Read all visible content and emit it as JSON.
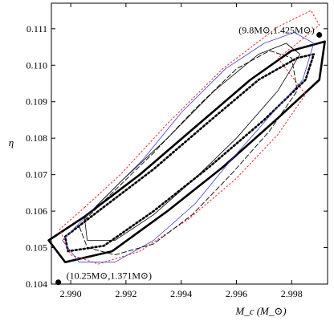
{
  "chart_data": {
    "type": "line",
    "xlabel": "M_c (M_⊙)",
    "ylabel": "η",
    "xlim": [
      2.9893,
      2.9993
    ],
    "ylim": [
      0.104,
      0.1117
    ],
    "x_ticks": [
      "2.990",
      "2.992",
      "2.994",
      "2.996",
      "2.998"
    ],
    "y_ticks": [
      "0.104",
      "0.105",
      "0.106",
      "0.107",
      "0.108",
      "0.109",
      "0.110",
      "0.111"
    ],
    "x_tick_values": [
      2.99,
      2.992,
      2.994,
      2.996,
      2.998
    ],
    "y_tick_values": [
      0.104,
      0.105,
      0.106,
      0.107,
      0.108,
      0.109,
      0.11,
      0.111
    ],
    "points": [
      {
        "x": 2.999,
        "y": 0.11083,
        "label": "(9.8M⊙,1.425M⊙)",
        "marker": "filled"
      },
      {
        "x": 2.98955,
        "y": 0.10405,
        "label": "(10.25M⊙,1.371M⊙)",
        "marker": "filled"
      }
    ],
    "series": [
      {
        "style": "solid-thick",
        "color": "#000000",
        "x": [
          2.9892,
          2.9905,
          2.9925,
          2.9945,
          2.9965,
          2.998,
          2.9992,
          2.999,
          2.9975,
          2.9955,
          2.9935,
          2.9915,
          2.9898,
          2.9892
        ],
        "y": [
          0.1052,
          0.10585,
          0.107,
          0.1083,
          0.1096,
          0.1104,
          0.11065,
          0.1096,
          0.10855,
          0.1072,
          0.106,
          0.1049,
          0.1046,
          0.1052
        ]
      },
      {
        "style": "dotted-thick",
        "color": "#000000",
        "x": [
          2.9898,
          2.991,
          2.993,
          2.995,
          2.9968,
          2.9982,
          2.9988,
          2.9985,
          2.997,
          2.995,
          2.993,
          2.9912,
          2.9899,
          2.9898
        ],
        "y": [
          0.1053,
          0.106,
          0.10715,
          0.10845,
          0.1096,
          0.1102,
          0.1103,
          0.1096,
          0.1085,
          0.1072,
          0.106,
          0.10505,
          0.1049,
          0.1053
        ]
      },
      {
        "style": "dotted",
        "color": "#e8322e",
        "x": [
          2.9905,
          2.9918,
          2.9935,
          2.9955,
          2.9975,
          2.9987,
          2.999,
          2.9982,
          2.9975,
          2.9985,
          2.9975,
          2.996,
          2.9943,
          2.9925,
          2.991,
          2.99,
          2.9896,
          2.9905
        ],
        "y": [
          0.1061,
          0.107,
          0.1084,
          0.1099,
          0.11105,
          0.1115,
          0.1111,
          0.1106,
          0.1102,
          0.1092,
          0.1081,
          0.1069,
          0.1058,
          0.1049,
          0.10455,
          0.1048,
          0.1055,
          0.1061
        ]
      },
      {
        "style": "solid-thin",
        "color": "#4040d0",
        "x": [
          2.9897,
          2.991,
          2.9926,
          2.994,
          2.9956,
          2.997,
          2.9981,
          2.9988,
          2.9984,
          2.9972,
          2.9958,
          2.9945,
          2.993,
          2.9916,
          2.9903,
          2.9897
        ],
        "y": [
          0.1052,
          0.1062,
          0.1074,
          0.1087,
          0.1099,
          0.1106,
          0.1109,
          0.1106,
          0.1096,
          0.1086,
          0.1074,
          0.1062,
          0.1052,
          0.1046,
          0.1046,
          0.1052
        ]
      },
      {
        "style": "dashed-thin",
        "color": "#000000",
        "x": [
          2.9903,
          2.9915,
          2.993,
          2.9945,
          2.996,
          2.9972,
          2.998,
          2.9982,
          2.9972,
          2.9958,
          2.9944,
          2.993,
          2.9916,
          2.9906,
          2.9903
        ],
        "y": [
          0.1056,
          0.1065,
          0.1076,
          0.1088,
          0.1099,
          0.1104,
          0.1102,
          0.1093,
          0.1082,
          0.107,
          0.1059,
          0.1051,
          0.1048,
          0.105,
          0.1056
        ]
      },
      {
        "style": "solid-thin",
        "color": "#000000",
        "x": [
          2.9905,
          2.9918,
          2.9935,
          2.9952,
          2.9968,
          2.9978,
          2.9983,
          2.9975,
          2.996,
          2.9945,
          2.993,
          2.9916,
          2.9906,
          2.9905
        ],
        "y": [
          0.1058,
          0.1068,
          0.108,
          0.1093,
          0.1103,
          0.1106,
          0.1103,
          0.1093,
          0.108,
          0.1069,
          0.1059,
          0.1052,
          0.1052,
          0.1058
        ]
      }
    ]
  }
}
